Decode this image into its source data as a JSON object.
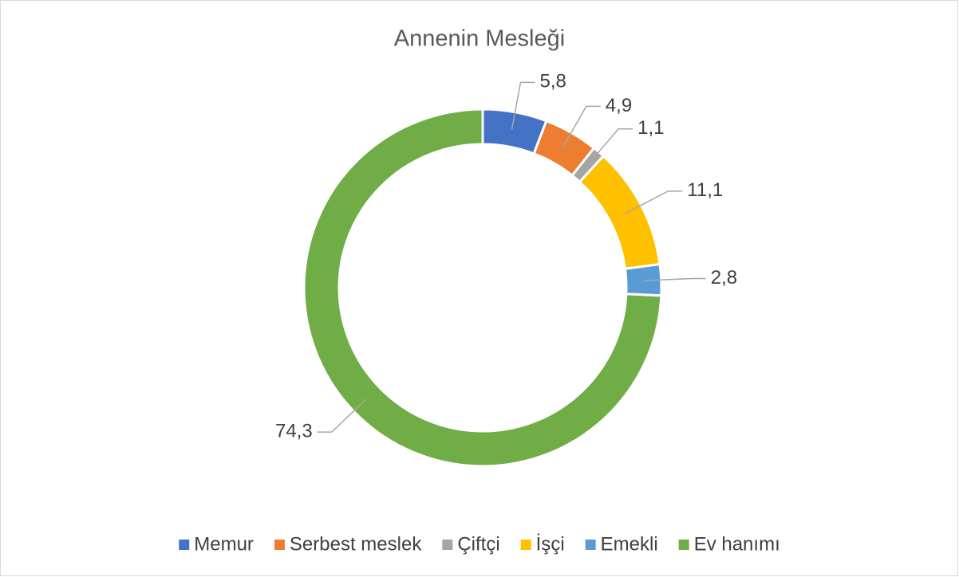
{
  "chart_data": {
    "type": "donut",
    "title": "Annenin Mesleği",
    "categories": [
      "Memur",
      "Serbest meslek",
      "Çiftçi",
      "İşçi",
      "Emekli",
      "Ev hanımı"
    ],
    "values": [
      5.8,
      4.9,
      1.1,
      11.1,
      2.8,
      74.3
    ],
    "value_labels": [
      "5,8",
      "4,9",
      "1,1",
      "11,1",
      "2,8",
      "74,3"
    ],
    "colors": [
      "#4472c4",
      "#ed7d31",
      "#a5a5a5",
      "#ffc000",
      "#5b9bd5",
      "#70ad47"
    ],
    "legend": "bottom"
  }
}
